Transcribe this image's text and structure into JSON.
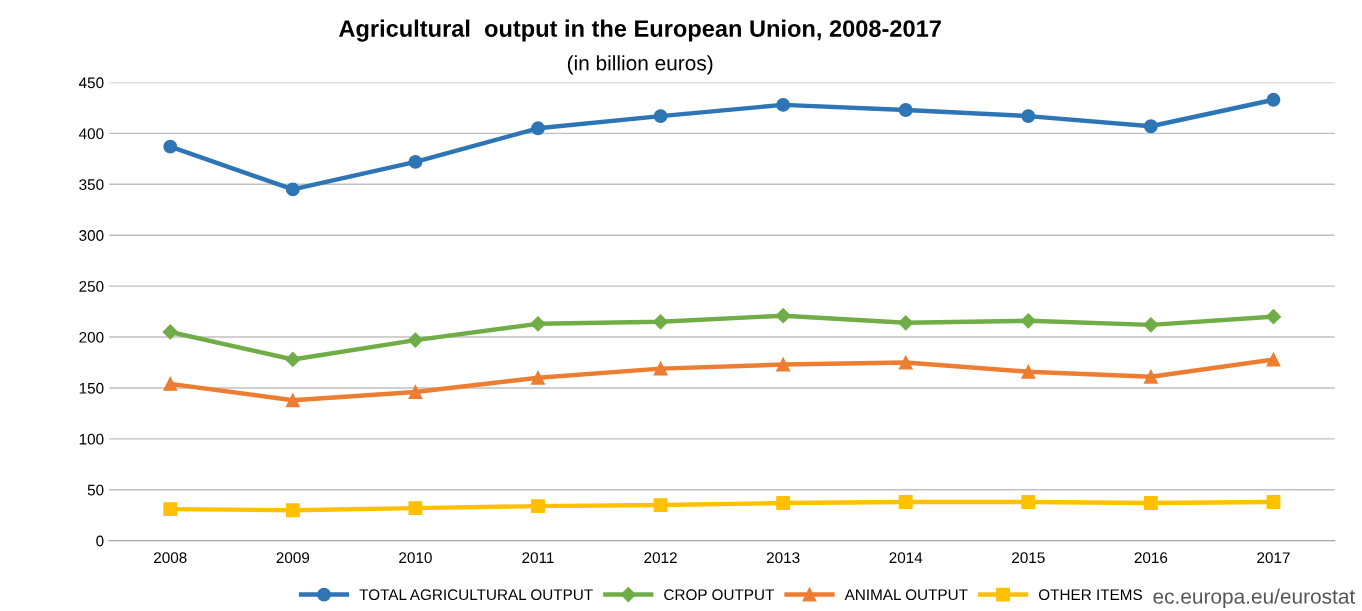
{
  "chart_data": {
    "type": "line",
    "title": "Agricultural  output in the European Union, 2008-2017",
    "subtitle": "(in billion euros)",
    "categories": [
      "2008",
      "2009",
      "2010",
      "2011",
      "2012",
      "2013",
      "2014",
      "2015",
      "2016",
      "2017"
    ],
    "series": [
      {
        "name": "TOTAL AGRICULTURAL OUTPUT",
        "color": "#2e75b6",
        "marker": "circle",
        "values": [
          387,
          345,
          372,
          405,
          417,
          428,
          423,
          417,
          407,
          433
        ]
      },
      {
        "name": "CROP OUTPUT",
        "color": "#70ad47",
        "marker": "diamond",
        "values": [
          205,
          178,
          197,
          213,
          215,
          221,
          214,
          216,
          212,
          220
        ]
      },
      {
        "name": "ANIMAL OUTPUT",
        "color": "#ed7d31",
        "marker": "triangle",
        "values": [
          154,
          138,
          146,
          160,
          169,
          173,
          175,
          166,
          161,
          178
        ]
      },
      {
        "name": "OTHER ITEMS",
        "color": "#ffc000",
        "marker": "square",
        "values": [
          31,
          30,
          32,
          34,
          35,
          37,
          38,
          38,
          37,
          38
        ]
      }
    ],
    "ylim": [
      0,
      450
    ],
    "yticks": [
      0,
      50,
      100,
      150,
      200,
      250,
      300,
      350,
      400,
      450
    ],
    "grid": "y",
    "legend": "bottom",
    "line_style": "solid",
    "annotations": [
      "ec.europa.eu/eurostat"
    ]
  }
}
